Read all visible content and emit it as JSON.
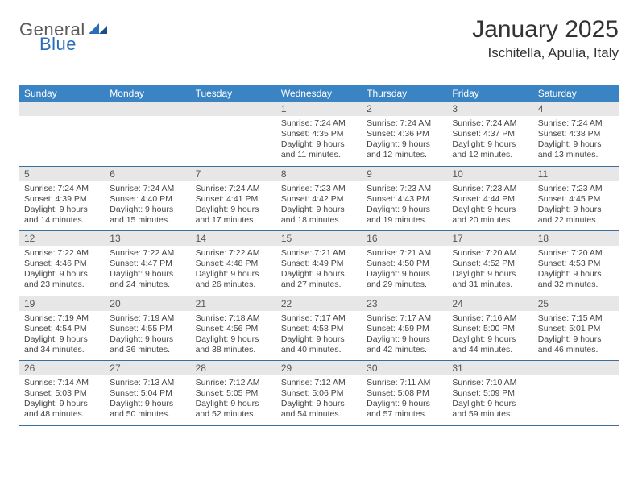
{
  "logo": {
    "general": "General",
    "blue": "Blue"
  },
  "title": "January 2025",
  "location": "Ischitella, Apulia, Italy",
  "header_bg": "#3b84c4",
  "daynum_bg": "#e7e7e7",
  "week_border": "#3b6ea0",
  "weekdays": [
    "Sunday",
    "Monday",
    "Tuesday",
    "Wednesday",
    "Thursday",
    "Friday",
    "Saturday"
  ],
  "weeks": [
    [
      null,
      null,
      null,
      {
        "d": "1",
        "sr": "7:24 AM",
        "ss": "4:35 PM",
        "dl": "9 hours and 11 minutes."
      },
      {
        "d": "2",
        "sr": "7:24 AM",
        "ss": "4:36 PM",
        "dl": "9 hours and 12 minutes."
      },
      {
        "d": "3",
        "sr": "7:24 AM",
        "ss": "4:37 PM",
        "dl": "9 hours and 12 minutes."
      },
      {
        "d": "4",
        "sr": "7:24 AM",
        "ss": "4:38 PM",
        "dl": "9 hours and 13 minutes."
      }
    ],
    [
      {
        "d": "5",
        "sr": "7:24 AM",
        "ss": "4:39 PM",
        "dl": "9 hours and 14 minutes."
      },
      {
        "d": "6",
        "sr": "7:24 AM",
        "ss": "4:40 PM",
        "dl": "9 hours and 15 minutes."
      },
      {
        "d": "7",
        "sr": "7:24 AM",
        "ss": "4:41 PM",
        "dl": "9 hours and 17 minutes."
      },
      {
        "d": "8",
        "sr": "7:23 AM",
        "ss": "4:42 PM",
        "dl": "9 hours and 18 minutes."
      },
      {
        "d": "9",
        "sr": "7:23 AM",
        "ss": "4:43 PM",
        "dl": "9 hours and 19 minutes."
      },
      {
        "d": "10",
        "sr": "7:23 AM",
        "ss": "4:44 PM",
        "dl": "9 hours and 20 minutes."
      },
      {
        "d": "11",
        "sr": "7:23 AM",
        "ss": "4:45 PM",
        "dl": "9 hours and 22 minutes."
      }
    ],
    [
      {
        "d": "12",
        "sr": "7:22 AM",
        "ss": "4:46 PM",
        "dl": "9 hours and 23 minutes."
      },
      {
        "d": "13",
        "sr": "7:22 AM",
        "ss": "4:47 PM",
        "dl": "9 hours and 24 minutes."
      },
      {
        "d": "14",
        "sr": "7:22 AM",
        "ss": "4:48 PM",
        "dl": "9 hours and 26 minutes."
      },
      {
        "d": "15",
        "sr": "7:21 AM",
        "ss": "4:49 PM",
        "dl": "9 hours and 27 minutes."
      },
      {
        "d": "16",
        "sr": "7:21 AM",
        "ss": "4:50 PM",
        "dl": "9 hours and 29 minutes."
      },
      {
        "d": "17",
        "sr": "7:20 AM",
        "ss": "4:52 PM",
        "dl": "9 hours and 31 minutes."
      },
      {
        "d": "18",
        "sr": "7:20 AM",
        "ss": "4:53 PM",
        "dl": "9 hours and 32 minutes."
      }
    ],
    [
      {
        "d": "19",
        "sr": "7:19 AM",
        "ss": "4:54 PM",
        "dl": "9 hours and 34 minutes."
      },
      {
        "d": "20",
        "sr": "7:19 AM",
        "ss": "4:55 PM",
        "dl": "9 hours and 36 minutes."
      },
      {
        "d": "21",
        "sr": "7:18 AM",
        "ss": "4:56 PM",
        "dl": "9 hours and 38 minutes."
      },
      {
        "d": "22",
        "sr": "7:17 AM",
        "ss": "4:58 PM",
        "dl": "9 hours and 40 minutes."
      },
      {
        "d": "23",
        "sr": "7:17 AM",
        "ss": "4:59 PM",
        "dl": "9 hours and 42 minutes."
      },
      {
        "d": "24",
        "sr": "7:16 AM",
        "ss": "5:00 PM",
        "dl": "9 hours and 44 minutes."
      },
      {
        "d": "25",
        "sr": "7:15 AM",
        "ss": "5:01 PM",
        "dl": "9 hours and 46 minutes."
      }
    ],
    [
      {
        "d": "26",
        "sr": "7:14 AM",
        "ss": "5:03 PM",
        "dl": "9 hours and 48 minutes."
      },
      {
        "d": "27",
        "sr": "7:13 AM",
        "ss": "5:04 PM",
        "dl": "9 hours and 50 minutes."
      },
      {
        "d": "28",
        "sr": "7:12 AM",
        "ss": "5:05 PM",
        "dl": "9 hours and 52 minutes."
      },
      {
        "d": "29",
        "sr": "7:12 AM",
        "ss": "5:06 PM",
        "dl": "9 hours and 54 minutes."
      },
      {
        "d": "30",
        "sr": "7:11 AM",
        "ss": "5:08 PM",
        "dl": "9 hours and 57 minutes."
      },
      {
        "d": "31",
        "sr": "7:10 AM",
        "ss": "5:09 PM",
        "dl": "9 hours and 59 minutes."
      },
      null
    ]
  ],
  "labels": {
    "sunrise": "Sunrise:",
    "sunset": "Sunset:",
    "daylight": "Daylight:"
  }
}
